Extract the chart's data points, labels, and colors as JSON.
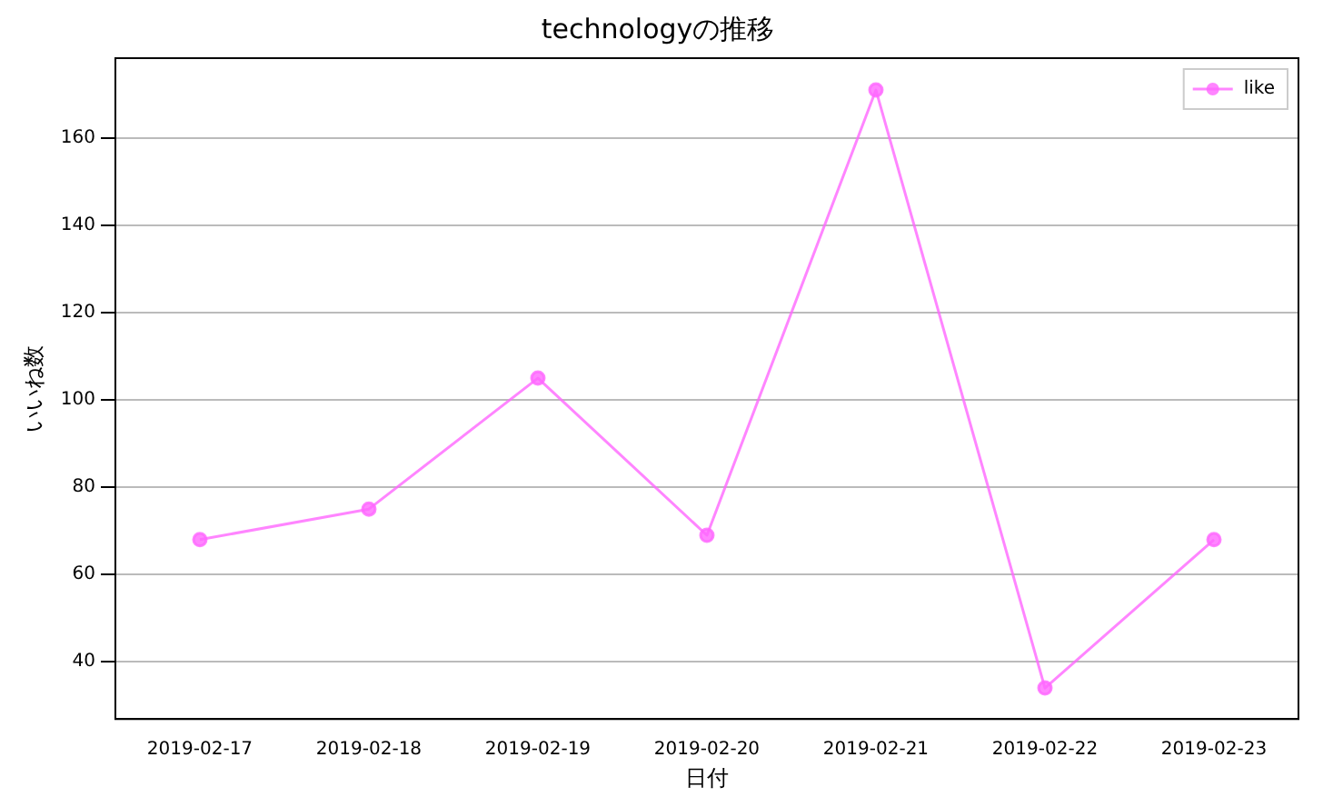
{
  "chart_data": {
    "type": "line",
    "title": "technologyの推移",
    "xlabel": "日付",
    "ylabel": "いいね数",
    "categories": [
      "2019-02-17",
      "2019-02-18",
      "2019-02-19",
      "2019-02-20",
      "2019-02-21",
      "2019-02-22",
      "2019-02-23"
    ],
    "series": [
      {
        "name": "like",
        "color": "#ff66ff",
        "values": [
          68,
          75,
          105,
          69,
          171,
          34,
          68
        ]
      }
    ],
    "ylim": [
      26.9,
      178.3
    ],
    "yticks": [
      40,
      60,
      80,
      100,
      120,
      140,
      160
    ],
    "grid": "y",
    "legend": "top right",
    "marker": "circle"
  }
}
